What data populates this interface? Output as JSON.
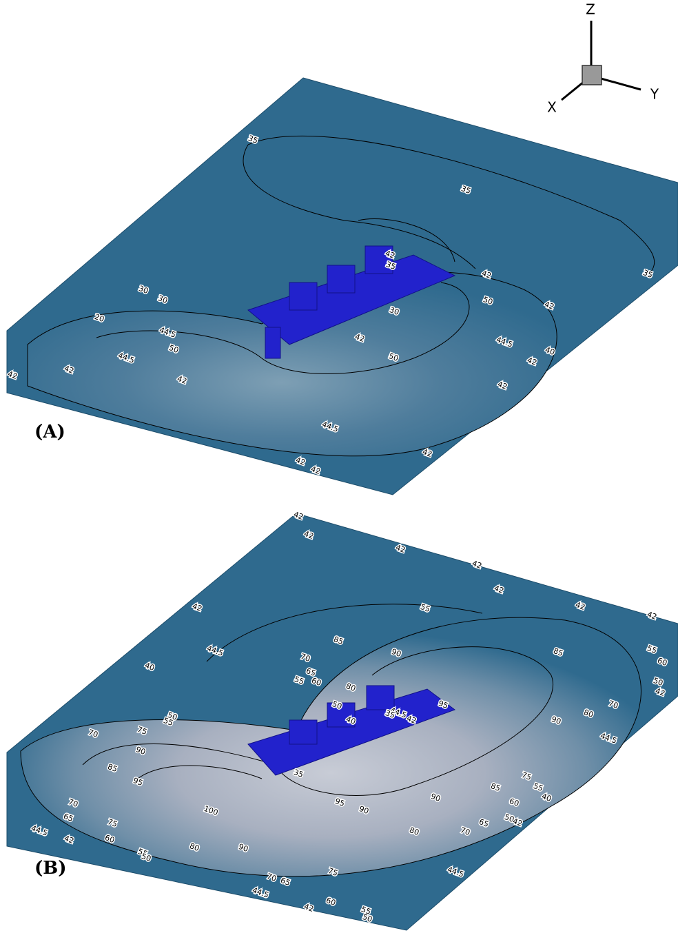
{
  "axes": {
    "z": "Z",
    "y": "Y",
    "x": "X"
  },
  "panels": [
    {
      "label": "(A)",
      "contour_labels": [
        "35",
        "35",
        "35",
        "42",
        "35",
        "42",
        "50",
        "42",
        "30",
        "30",
        "20",
        "30",
        "44.5",
        "42",
        "50",
        "44.5",
        "44.5",
        "40",
        "50",
        "42",
        "42",
        "42",
        "42",
        "42",
        "44.5",
        "42",
        "42",
        "42"
      ]
    },
    {
      "label": "(B)",
      "contour_labels": [
        "42",
        "42",
        "42",
        "42",
        "42",
        "42",
        "42",
        "42",
        "55",
        "85",
        "44.5",
        "90",
        "85",
        "55",
        "60",
        "70",
        "40",
        "65",
        "60",
        "55",
        "80",
        "50",
        "42",
        "50",
        "95",
        "80",
        "70",
        "50",
        "55",
        "40",
        "44.5",
        "35",
        "42",
        "90",
        "70",
        "75",
        "44.5",
        "90",
        "85",
        "35",
        "95",
        "85",
        "75",
        "55",
        "40",
        "90",
        "60",
        "70",
        "100",
        "95",
        "90",
        "65",
        "75",
        "50",
        "42",
        "65",
        "70",
        "80",
        "44.5",
        "42",
        "60",
        "90",
        "80",
        "55",
        "50",
        "75",
        "44.5",
        "70",
        "65",
        "44.5",
        "60",
        "42",
        "55",
        "50"
      ]
    }
  ]
}
